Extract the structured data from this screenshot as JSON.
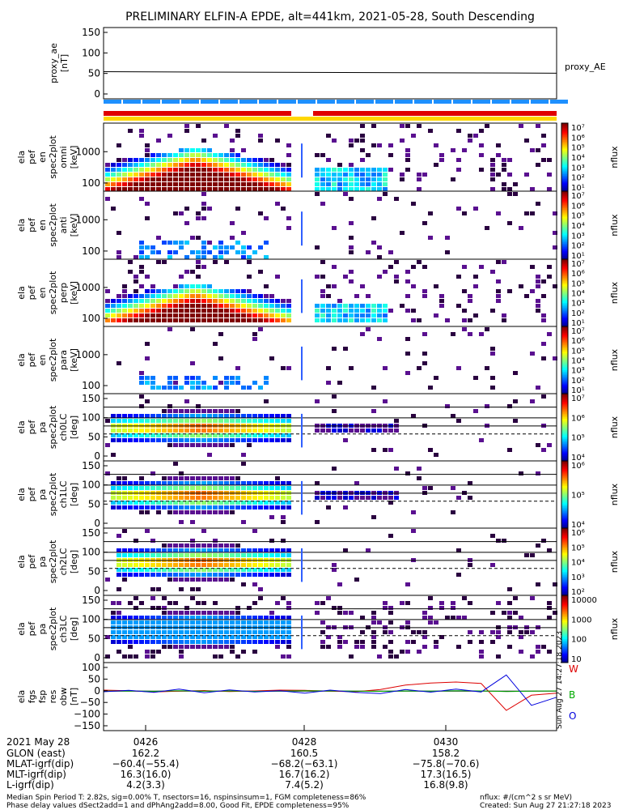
{
  "title": "PRELIMINARY ELFIN-A EPDE, alt=441km, 2021-05-28, South Descending",
  "panels": [
    {
      "ylabel": [
        "proxy_ae",
        "[nT]"
      ],
      "ticks": [
        "150",
        "100",
        "50",
        "0"
      ],
      "right_label": "proxy_AE"
    },
    {
      "ylabel": [
        "ela",
        "pef",
        "en",
        "spec2plot",
        "omni",
        "[keV]"
      ],
      "ticks": [
        "1000",
        "100"
      ],
      "cbar": "nflux",
      "cbar_ticks": [
        "10⁷",
        "10⁶",
        "10⁵",
        "10⁴",
        "10³",
        "10²",
        "10¹"
      ]
    },
    {
      "ylabel": [
        "ela",
        "pef",
        "en",
        "spec2plot",
        "anti",
        "[keV]"
      ],
      "ticks": [
        "1000",
        "100"
      ],
      "cbar": "nflux",
      "cbar_ticks": [
        "10⁷",
        "10⁶",
        "10⁵",
        "10⁴",
        "10³",
        "10²",
        "10¹"
      ]
    },
    {
      "ylabel": [
        "ela",
        "pef",
        "en",
        "spec2plot",
        "perp",
        "[keV]"
      ],
      "ticks": [
        "1000",
        "100"
      ],
      "cbar": "nflux",
      "cbar_ticks": [
        "10⁷",
        "10⁶",
        "10⁵",
        "10⁴",
        "10³",
        "10²",
        "10¹"
      ]
    },
    {
      "ylabel": [
        "ela",
        "pef",
        "en",
        "spec2plot",
        "para",
        "[keV]"
      ],
      "ticks": [
        "1000",
        "100"
      ],
      "cbar": "nflux",
      "cbar_ticks": [
        "10⁷",
        "10⁶",
        "10⁵",
        "10⁴",
        "10³",
        "10²",
        "10¹"
      ]
    },
    {
      "ylabel": [
        "ela",
        "pef",
        "pa",
        "spec2plot",
        "ch0LC",
        "[deg]"
      ],
      "ticks": [
        "150",
        "100",
        "50",
        "0"
      ],
      "cbar": "nflux",
      "cbar_ticks": [
        "10⁷",
        "10⁶",
        "10⁵",
        "10⁴"
      ]
    },
    {
      "ylabel": [
        "ela",
        "pef",
        "pa",
        "spec2plot",
        "ch1LC",
        "[deg]"
      ],
      "ticks": [
        "150",
        "100",
        "50",
        "0"
      ],
      "cbar": "nflux",
      "cbar_ticks": [
        "10⁶",
        "10⁵",
        "10⁴"
      ]
    },
    {
      "ylabel": [
        "ela",
        "pef",
        "pa",
        "spec2plot",
        "ch2LC",
        "[deg]"
      ],
      "ticks": [
        "150",
        "100",
        "50",
        "0"
      ],
      "cbar": "nflux",
      "cbar_ticks": [
        "10⁶",
        "10⁵",
        "10⁴",
        "10³",
        "10²"
      ]
    },
    {
      "ylabel": [
        "ela",
        "pef",
        "pa",
        "spec2plot",
        "ch3LC",
        "[deg]"
      ],
      "ticks": [
        "150",
        "100",
        "50",
        "0"
      ],
      "cbar": "nflux",
      "cbar_ticks": [
        "10000",
        "1000",
        "100",
        "10"
      ]
    },
    {
      "ylabel": [
        "ela",
        "fgs",
        "fsp",
        "res",
        "obw",
        "[nT]"
      ],
      "ticks": [
        "100",
        "50",
        "0",
        "−50",
        "−100",
        "−150"
      ],
      "legend": [
        "W",
        "B",
        "O"
      ]
    }
  ],
  "colors": {
    "red": "#dd0000",
    "green": "#00aa00",
    "blue": "#0000dd",
    "stripe_blue": "#1e90ff",
    "stripe_red": "#e00000",
    "stripe_yellow": "#ffd700"
  },
  "time_row": {
    "label": "2021 May 28",
    "ticks": [
      "0426",
      "0428",
      "0430"
    ]
  },
  "ephemeris": [
    {
      "label": "GLON (east)",
      "values": [
        "162.2",
        "160.5",
        "158.2"
      ]
    },
    {
      "label": "MLAT-igrf(dip)",
      "values": [
        "−60.4(−55.4)",
        "−68.2(−63.1)",
        "−75.8(−70.6)"
      ]
    },
    {
      "label": "MLT-igrf(dip)",
      "values": [
        "16.3(16.0)",
        "16.7(16.2)",
        "17.3(16.5)"
      ]
    },
    {
      "label": "L-igrf(dip)",
      "values": [
        "4.2(3.3)",
        "7.4(5.2)",
        "16.8(9.8)"
      ]
    }
  ],
  "footer": {
    "left1": "Median Spin Period T: 2.82s, sig=0.00% T, nsectors=16, nspinsinsum=1, FGM completeness=86%",
    "left2": "Phase delay values dSect2add=1 and dPhAng2add=8.00, Good Fit, EPDE completeness=95%",
    "right1": "nflux: #/(cm^2 s sr MeV)",
    "right2": "Created: Sun Aug 27 21:27:18 2023",
    "vertical": "Sun Aug 27 14:27:18 2023"
  },
  "chart_data": [
    {
      "type": "line",
      "title": "PRELIMINARY ELFIN-A EPDE, alt=441km, 2021-05-28, South Descending",
      "ylabel": "proxy_ae [nT]",
      "ylim": [
        -10,
        155
      ],
      "x": [
        "0426",
        "0428",
        "0430"
      ],
      "series": [
        {
          "name": "proxy_AE",
          "values": [
            55,
            52,
            52
          ]
        }
      ]
    },
    {
      "type": "heatmap",
      "ylabel": "ela pef en spec2plot omni [keV]",
      "yscale": "log",
      "ylim": [
        50,
        5000
      ],
      "colorbar": "nflux",
      "clim": [
        "10¹",
        "10⁷"
      ]
    },
    {
      "type": "heatmap",
      "ylabel": "ela pef en spec2plot anti [keV]",
      "yscale": "log",
      "ylim": [
        50,
        5000
      ],
      "colorbar": "nflux",
      "clim": [
        "10¹",
        "10⁷"
      ]
    },
    {
      "type": "heatmap",
      "ylabel": "ela pef en spec2plot perp [keV]",
      "yscale": "log",
      "ylim": [
        50,
        5000
      ],
      "colorbar": "nflux",
      "clim": [
        "10¹",
        "10⁷"
      ]
    },
    {
      "type": "heatmap",
      "ylabel": "ela pef en spec2plot para [keV]",
      "yscale": "log",
      "ylim": [
        50,
        5000
      ],
      "colorbar": "nflux",
      "clim": [
        "10¹",
        "10⁷"
      ]
    },
    {
      "type": "heatmap",
      "ylabel": "ela pef pa spec2plot ch0LC [deg]",
      "ylim": [
        0,
        180
      ],
      "colorbar": "nflux"
    },
    {
      "type": "heatmap",
      "ylabel": "ela pef pa spec2plot ch1LC [deg]",
      "ylim": [
        0,
        180
      ],
      "colorbar": "nflux"
    },
    {
      "type": "heatmap",
      "ylabel": "ela pef pa spec2plot ch2LC [deg]",
      "ylim": [
        0,
        180
      ],
      "colorbar": "nflux"
    },
    {
      "type": "heatmap",
      "ylabel": "ela pef pa spec2plot ch3LC [deg]",
      "ylim": [
        0,
        180
      ],
      "colorbar": "nflux"
    },
    {
      "type": "line",
      "ylabel": "ela fgs fsp res obw [nT]",
      "ylim": [
        -160,
        110
      ],
      "series": [
        {
          "name": "W",
          "color": "#dd0000",
          "values": [
            5,
            2,
            -4,
            0,
            3,
            -2,
            1,
            5,
            4,
            0,
            -3,
            8,
            30,
            40,
            45,
            38,
            -95,
            -20,
            -10
          ]
        },
        {
          "name": "B",
          "color": "#00aa00",
          "values": [
            0,
            1,
            -1,
            2,
            0,
            1,
            -1,
            0,
            2,
            1,
            0,
            -1,
            1,
            0,
            2,
            1,
            -2,
            0,
            1
          ]
        },
        {
          "name": "O",
          "color": "#0000dd",
          "values": [
            -3,
            4,
            -6,
            10,
            -8,
            6,
            -4,
            2,
            -10,
            5,
            -6,
            -12,
            8,
            -5,
            10,
            -4,
            80,
            -70,
            -30
          ]
        }
      ]
    }
  ]
}
